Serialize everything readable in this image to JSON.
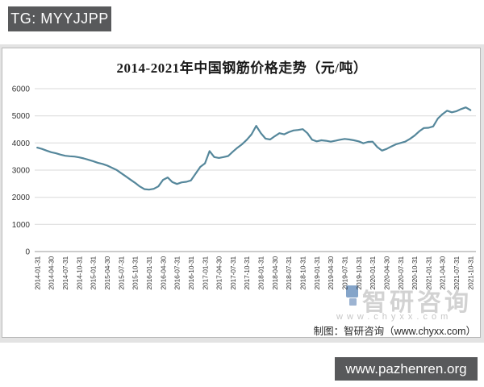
{
  "badges": {
    "top_left": "TG: MYYJJPP",
    "bottom_right": "www.pazhenren.org"
  },
  "chart": {
    "title": "2014-2021年中国钢筋价格走势（元/吨）",
    "footer": "制图：智研咨询（www.chyxx.com）",
    "watermark_brand": "智研咨询",
    "watermark_url": "www.chyxx.com"
  },
  "chart_data": {
    "type": "line",
    "title": "2014-2021年中国钢筋价格走势（元/吨）",
    "ylabel": "",
    "xlabel": "",
    "unit": "元/吨",
    "ylim": [
      0,
      6000
    ],
    "yticks": [
      0,
      1000,
      2000,
      3000,
      4000,
      5000,
      6000
    ],
    "grid": true,
    "legend": "none",
    "line_color": "#55879b",
    "x_start": "2014-01",
    "x_end": "2021-10",
    "x_freq": "monthly",
    "x_tick_labels": [
      "2014-01-31",
      "2014-04-30",
      "2014-07-31",
      "2014-10-31",
      "2015-01-31",
      "2015-04-30",
      "2015-07-31",
      "2015-10-31",
      "2016-01-31",
      "2016-04-30",
      "2016-07-31",
      "2016-10-31",
      "2017-01-31",
      "2017-04-30",
      "2017-07-31",
      "2017-10-31",
      "2018-01-31",
      "2018-04-30",
      "2018-07-31",
      "2018-10-31",
      "2019-01-31",
      "2019-04-30",
      "2019-07-31",
      "2019-10-31",
      "2020-01-31",
      "2020-04-30",
      "2020-07-31",
      "2020-10-31",
      "2021-01-31",
      "2021-04-30",
      "2021-07-31",
      "2021-10-31"
    ],
    "values": [
      3830,
      3780,
      3720,
      3660,
      3620,
      3570,
      3530,
      3510,
      3500,
      3470,
      3430,
      3380,
      3330,
      3270,
      3230,
      3170,
      3090,
      3010,
      2890,
      2770,
      2650,
      2530,
      2400,
      2300,
      2280,
      2310,
      2400,
      2640,
      2730,
      2560,
      2490,
      2550,
      2570,
      2620,
      2870,
      3120,
      3250,
      3700,
      3480,
      3450,
      3480,
      3520,
      3680,
      3830,
      3960,
      4120,
      4320,
      4630,
      4360,
      4160,
      4130,
      4250,
      4360,
      4320,
      4400,
      4460,
      4480,
      4510,
      4360,
      4120,
      4060,
      4100,
      4080,
      4050,
      4080,
      4120,
      4150,
      4130,
      4100,
      4060,
      3990,
      4040,
      4050,
      3850,
      3720,
      3780,
      3870,
      3950,
      4000,
      4050,
      4150,
      4270,
      4430,
      4550,
      4560,
      4610,
      4900,
      5060,
      5190,
      5130,
      5170,
      5250,
      5310,
      5210
    ]
  }
}
